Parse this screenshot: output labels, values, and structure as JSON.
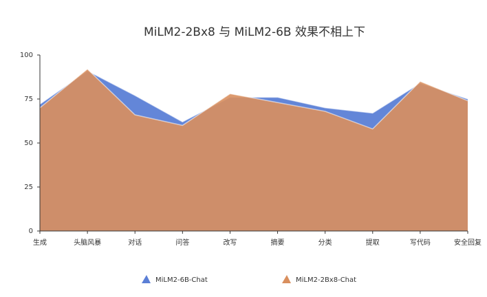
{
  "chart_data": {
    "type": "area",
    "title": "MiLM2-2Bx8 与 MiLM2-6B 效果不相上下",
    "xlabel": "",
    "ylabel": "",
    "ylim": [
      0,
      100
    ],
    "yticks": [
      0,
      25,
      50,
      75,
      100
    ],
    "categories": [
      "生成",
      "头脑风暴",
      "对话",
      "问答",
      "改写",
      "摘要",
      "分类",
      "提取",
      "写代码",
      "安全回复"
    ],
    "grid": false,
    "legend_position": "bottom",
    "series": [
      {
        "name": "MiLM2-6B-Chat",
        "color": "#5b7fd6",
        "values": [
          72,
          91,
          77,
          62,
          76,
          76,
          70,
          67,
          84,
          75
        ]
      },
      {
        "name": "MiLM2-2Bx8-Chat",
        "color": "#d98f5e",
        "values": [
          70,
          92,
          66,
          60,
          78,
          73,
          68,
          58,
          85,
          74
        ]
      }
    ]
  }
}
